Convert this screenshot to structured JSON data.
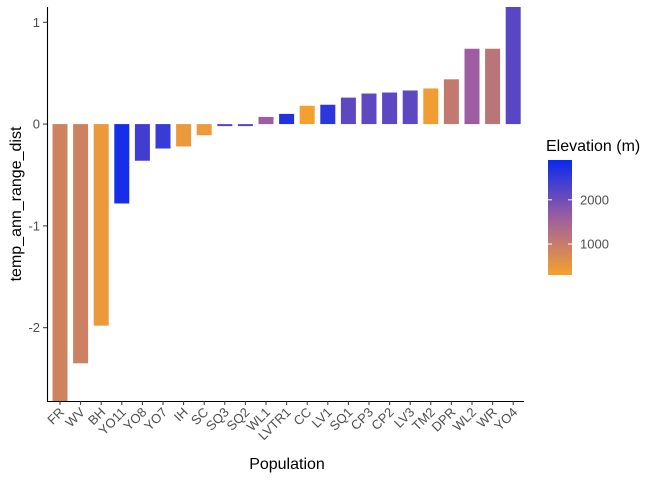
{
  "chart_data": {
    "type": "bar",
    "xlabel": "Population",
    "ylabel": "temp_ann_range_dist",
    "ylim": [
      -2.72,
      1.15
    ],
    "yticks": [
      -2,
      -1,
      0,
      1
    ],
    "grid": false,
    "categories": [
      "FR",
      "WV",
      "BH",
      "YO11",
      "YO8",
      "YO7",
      "IH",
      "SC",
      "SQ3",
      "SQ2",
      "WL1",
      "LVTR1",
      "CC",
      "LV1",
      "SQ1",
      "CP3",
      "CP2",
      "LV3",
      "TM2",
      "DPR",
      "WL2",
      "WR",
      "YO4"
    ],
    "values": [
      -2.72,
      -2.35,
      -1.98,
      -0.78,
      -0.36,
      -0.24,
      -0.22,
      -0.11,
      -0.02,
      -0.02,
      0.07,
      0.1,
      0.18,
      0.19,
      0.26,
      0.3,
      0.31,
      0.33,
      0.35,
      0.44,
      0.74,
      0.74,
      1.15
    ],
    "elevation": [
      880,
      900,
      450,
      2780,
      2400,
      2470,
      450,
      460,
      2200,
      2200,
      1600,
      2670,
      310,
      2590,
      2150,
      2150,
      2150,
      2150,
      380,
      1050,
      1600,
      1160,
      2200
    ],
    "legend": {
      "title": "Elevation (m)",
      "position": "right",
      "min": 300,
      "max": 2900,
      "ticks": [
        1000,
        2000
      ],
      "colors": {
        "low": "#f5a12d",
        "mid": "#9c5ea0",
        "high": "#0829f0"
      }
    }
  }
}
